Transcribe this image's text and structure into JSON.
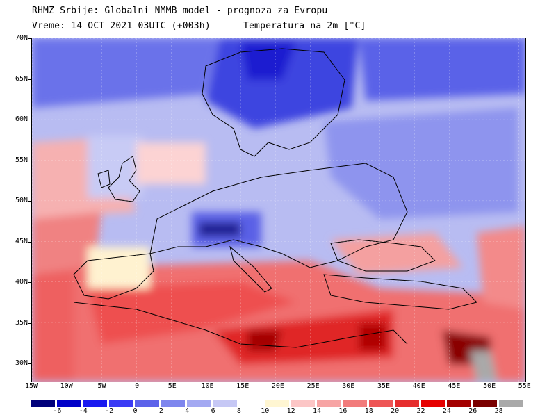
{
  "header": {
    "line1": "RHMZ Srbije: Globalni NMMB model - prognoza za Evropu",
    "line2_left": "Vreme: 14 OCT 2021 03UTC (+003h)",
    "line2_right": "Temperatura na 2m [°C]"
  },
  "axes": {
    "lat_labels": [
      "70N",
      "65N",
      "60N",
      "55N",
      "50N",
      "45N",
      "40N",
      "35N",
      "30N"
    ],
    "lon_labels": [
      "15W",
      "10W",
      "5W",
      "0",
      "5E",
      "10E",
      "15E",
      "20E",
      "25E",
      "30E",
      "35E",
      "40E",
      "45E",
      "50E",
      "55E"
    ]
  },
  "legend": {
    "labels": [
      "-6",
      "-4",
      "-2",
      "0",
      "2",
      "4",
      "6",
      "8",
      "10",
      "12",
      "14",
      "16",
      "18",
      "20",
      "22",
      "24",
      "26",
      "28"
    ],
    "colors": [
      "#00007a",
      "#0000c8",
      "#1a1af0",
      "#3b3bf5",
      "#5c62ea",
      "#7e86ee",
      "#a3a9f2",
      "#c6c8f5",
      "#ffffff",
      "#fff6d2",
      "#fcc6c6",
      "#f7a4a4",
      "#f27b7b",
      "#ee5555",
      "#e62e2e",
      "#e60000",
      "#a40000",
      "#7a0000",
      "#a9a9a9"
    ]
  }
}
